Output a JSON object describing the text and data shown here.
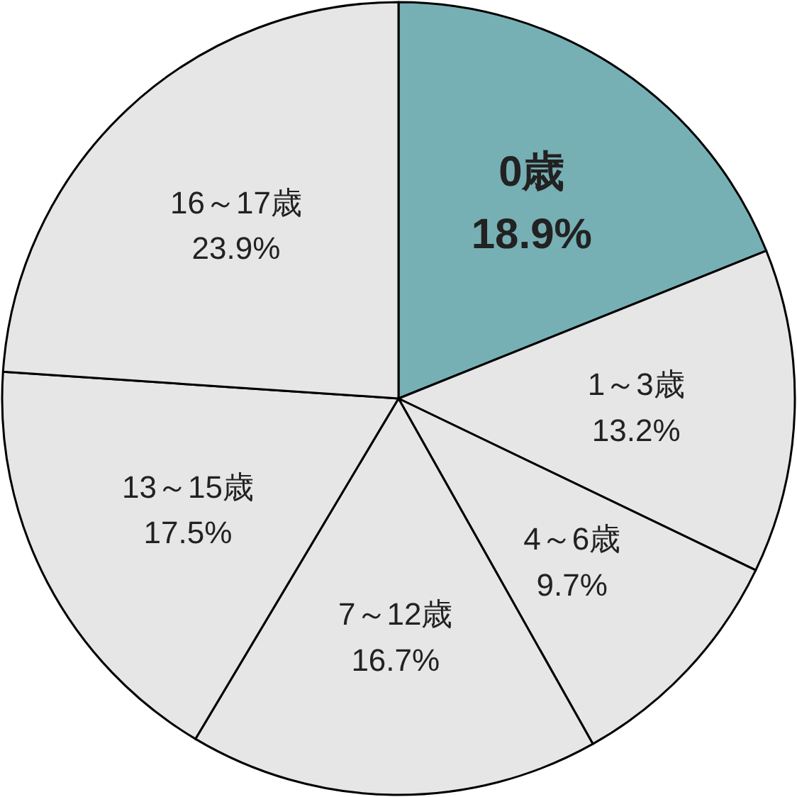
{
  "chart_data": {
    "type": "pie",
    "categories": [
      "0歳",
      "1～3歳",
      "4～6歳",
      "7～12歳",
      "13～15歳",
      "16～17歳"
    ],
    "values": [
      18.9,
      13.2,
      9.7,
      16.7,
      17.5,
      23.9
    ],
    "value_labels": [
      "18.9%",
      "13.2%",
      "9.7%",
      "16.7%",
      "17.5%",
      "23.9%"
    ],
    "colors": [
      "#76b0b4",
      "#e6e6e6",
      "#e6e6e6",
      "#e6e6e6",
      "#e6e6e6",
      "#e6e6e6"
    ]
  }
}
